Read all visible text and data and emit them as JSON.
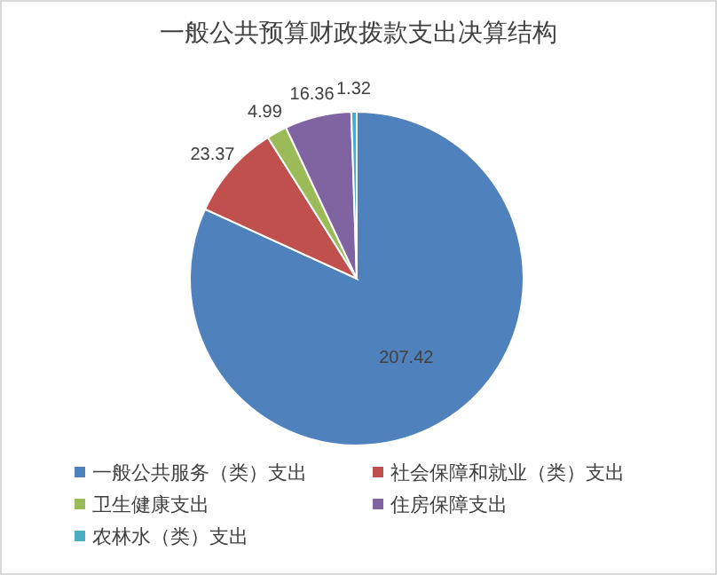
{
  "chart_data": {
    "type": "pie",
    "title": "一般公共预算财政拨款支出决算结构",
    "categories": [
      "一般公共服务（类）支出",
      "社会保障和就业（类）支出",
      "卫生健康支出",
      "住房保障支出",
      "农林水（类）支出"
    ],
    "values": [
      207.42,
      23.37,
      4.99,
      16.36,
      1.32
    ],
    "colors": [
      "#4f81bd",
      "#c0504d",
      "#9bbb59",
      "#8064a2",
      "#4bacc6"
    ],
    "data_labels": true,
    "legend": "bottom"
  }
}
